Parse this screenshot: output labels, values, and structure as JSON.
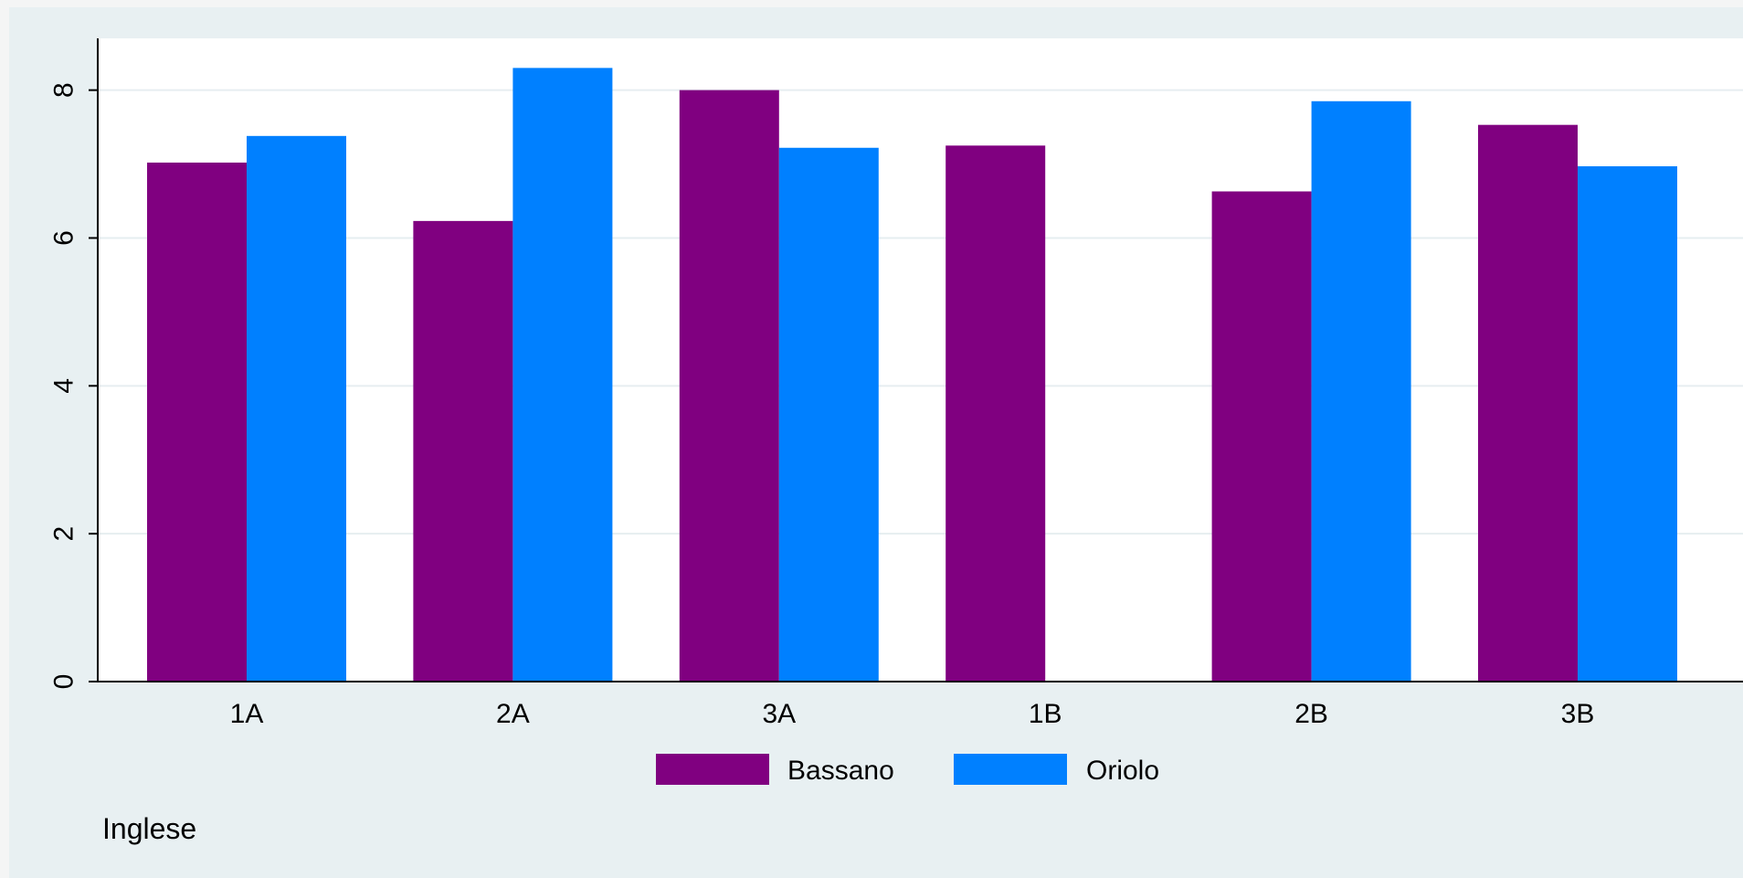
{
  "chart_data": {
    "type": "bar",
    "categories": [
      "1A",
      "2A",
      "3A",
      "1B",
      "2B",
      "3B"
    ],
    "series": [
      {
        "name": "Bassano",
        "values": [
          7.02,
          6.23,
          8.0,
          7.25,
          6.63,
          7.53
        ]
      },
      {
        "name": "Oriolo",
        "values": [
          7.38,
          8.3,
          7.22,
          null,
          7.85,
          6.97
        ]
      }
    ],
    "y_ticks": [
      0,
      2,
      4,
      6,
      8
    ],
    "ylim": [
      0,
      8.7
    ],
    "grid": true,
    "legend_position": "bottom",
    "note": "Inglese",
    "colors": {
      "Bassano": "#800080",
      "Oriolo": "#0080ff",
      "graph_background": "#e8f0f2",
      "plot_background": "#ffffff",
      "gridline": "#e6eef0",
      "outer_background": "#f4f5f5"
    }
  }
}
